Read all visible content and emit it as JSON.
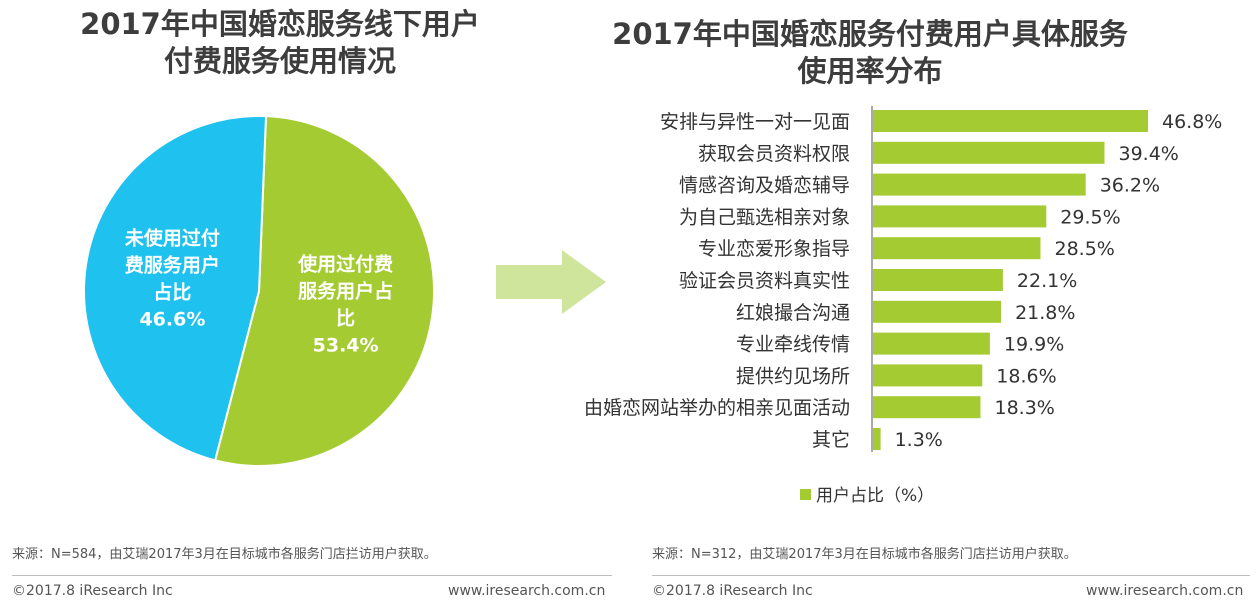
{
  "colors": {
    "cyan": "#1fc1ef",
    "green": "#a4cc32",
    "arrow": "#cfe59b",
    "text": "#333333"
  },
  "left_chart": {
    "title_lines": [
      "2017年中国婚恋服务线下用户",
      "付费服务使用情况"
    ],
    "source": "来源：N=584，由艾瑞2017年3月在目标城市各服务门店拦访用户获取。",
    "copyright": "©2017.8 iResearch Inc",
    "website": "www.iresearch.com.cn"
  },
  "right_chart": {
    "title_lines": [
      "2017年中国婚恋服务付费用户具体服务",
      "使用率分布"
    ],
    "source": "来源：N=312，由艾瑞2017年3月在目标城市各服务门店拦访用户获取。",
    "copyright": "©2017.8 iResearch Inc",
    "website": "www.iresearch.com.cn"
  },
  "chart_data": [
    {
      "type": "pie",
      "slices": [
        {
          "label_lines": [
            "使用过付费",
            "服务用户占",
            "比"
          ],
          "value": 53.4,
          "value_label": "53.4%",
          "color": "#a4cc32"
        },
        {
          "label_lines": [
            "未使用过付",
            "费服务用户",
            "占比"
          ],
          "value": 46.6,
          "value_label": "46.6%",
          "color": "#1fc1ef"
        }
      ]
    },
    {
      "type": "bar",
      "orientation": "horizontal",
      "categories": [
        "安排与异性一对一见面",
        "获取会员资料权限",
        "情感咨询及婚恋辅导",
        "为自己甄选相亲对象",
        "专业恋爱形象指导",
        "验证会员资料真实性",
        "红娘撮合沟通",
        "专业牵线传情",
        "提供约见场所",
        "由婚恋网站举办的相亲见面活动",
        "其它"
      ],
      "series": [
        {
          "name": "用户占比（%）",
          "color": "#a4cc32",
          "values": [
            46.8,
            39.4,
            36.2,
            29.5,
            28.5,
            22.1,
            21.8,
            19.9,
            18.6,
            18.3,
            1.3
          ],
          "value_labels": [
            "46.8%",
            "39.4%",
            "36.2%",
            "29.5%",
            "28.5%",
            "22.1%",
            "21.8%",
            "19.9%",
            "18.6%",
            "18.3%",
            "1.3%"
          ]
        }
      ],
      "legend": {
        "label": "用户占比（%）",
        "placement": "bottom-center"
      }
    }
  ]
}
